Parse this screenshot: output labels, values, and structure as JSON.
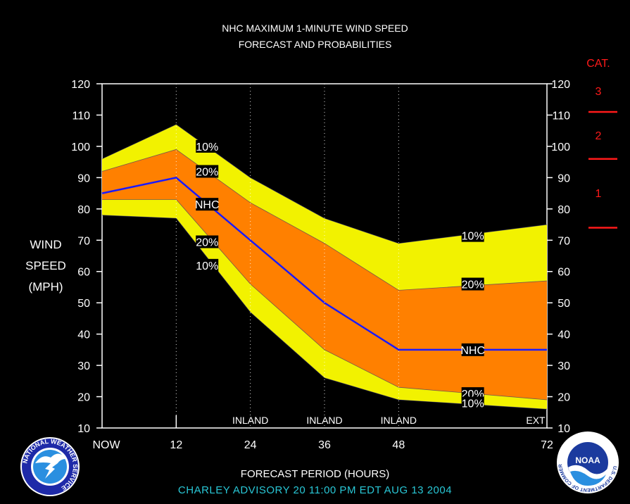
{
  "header": {
    "title_line1": "NHC MAXIMUM 1-MINUTE WIND SPEED",
    "title_line2": "FORECAST AND PROBABILITIES"
  },
  "y_axis_label": [
    "WIND",
    "SPEED",
    "(MPH)"
  ],
  "x_axis_title": "FORECAST PERIOD (HOURS)",
  "advisory": "CHARLEY   ADVISORY  20  11:00  PM  EDT  AUG 13  2004",
  "category_scale": {
    "title": "CAT.",
    "labels": [
      "3",
      "2",
      "1"
    ],
    "color": "#ff1a1a"
  },
  "logos": {
    "nws_text": "NATIONAL WEATHER SERVICE",
    "noaa_text": "NOAA",
    "noaa_ring_text": "U.S. DEPARTMENT OF COMMERCE"
  },
  "chart_data": {
    "type": "area",
    "title": "NHC MAXIMUM 1-MINUTE WIND SPEED FORECAST AND PROBABILITIES",
    "xlabel": "FORECAST PERIOD (HOURS)",
    "ylabel": "WIND SPEED (MPH)",
    "ylim": [
      10,
      120
    ],
    "y_ticks": [
      10,
      20,
      30,
      40,
      50,
      60,
      70,
      80,
      90,
      100,
      110,
      120
    ],
    "x_ticks": [
      {
        "label": "NOW",
        "x": 0
      },
      {
        "label": "12",
        "x": 12
      },
      {
        "label": "24",
        "x": 24
      },
      {
        "label": "36",
        "x": 36
      },
      {
        "label": "48",
        "x": 48
      },
      {
        "label": "72",
        "x": 72
      }
    ],
    "inland_labels": [
      {
        "label": "INLAND",
        "x": 24
      },
      {
        "label": "INLAND",
        "x": 36
      },
      {
        "label": "INLAND",
        "x": 48
      },
      {
        "label": "EXT",
        "x": 72
      }
    ],
    "x": [
      0,
      12,
      24,
      36,
      48,
      72
    ],
    "series": [
      {
        "name": "10%",
        "role": "upper_10",
        "values": [
          96,
          107,
          90,
          77,
          69,
          75
        ]
      },
      {
        "name": "20%",
        "role": "upper_20",
        "values": [
          92,
          99,
          82,
          69,
          54,
          57
        ]
      },
      {
        "name": "NHC",
        "role": "forecast",
        "values": [
          85,
          90,
          70,
          50,
          35,
          35
        ]
      },
      {
        "name": "20%",
        "role": "lower_20",
        "values": [
          83,
          83,
          56,
          35,
          23,
          19
        ]
      },
      {
        "name": "10%",
        "role": "lower_10",
        "values": [
          78,
          77,
          47,
          26,
          19,
          16
        ]
      }
    ],
    "band_labels": [
      {
        "text": "10%",
        "x": 17,
        "y": 100
      },
      {
        "text": "20%",
        "x": 17,
        "y": 92
      },
      {
        "text": "NHC",
        "x": 17,
        "y": 81.5
      },
      {
        "text": "20%",
        "x": 17,
        "y": 69.5
      },
      {
        "text": "10%",
        "x": 17,
        "y": 62
      },
      {
        "text": "10%",
        "x": 60,
        "y": 71.5
      },
      {
        "text": "20%",
        "x": 60,
        "y": 56
      },
      {
        "text": "NHC",
        "x": 60,
        "y": 35
      },
      {
        "text": "20%",
        "x": 60,
        "y": 21
      },
      {
        "text": "10%",
        "x": 60,
        "y": 18
      }
    ],
    "category_thresholds": [
      74,
      96,
      111
    ],
    "colors": {
      "band_10": "#f2f200",
      "band_20": "#ff8000",
      "forecast_line": "#1a1aff",
      "category_marks": "#ff1a1a",
      "background": "#000000"
    },
    "grid": "dotted vertical at 12, 24, 36, 48"
  }
}
